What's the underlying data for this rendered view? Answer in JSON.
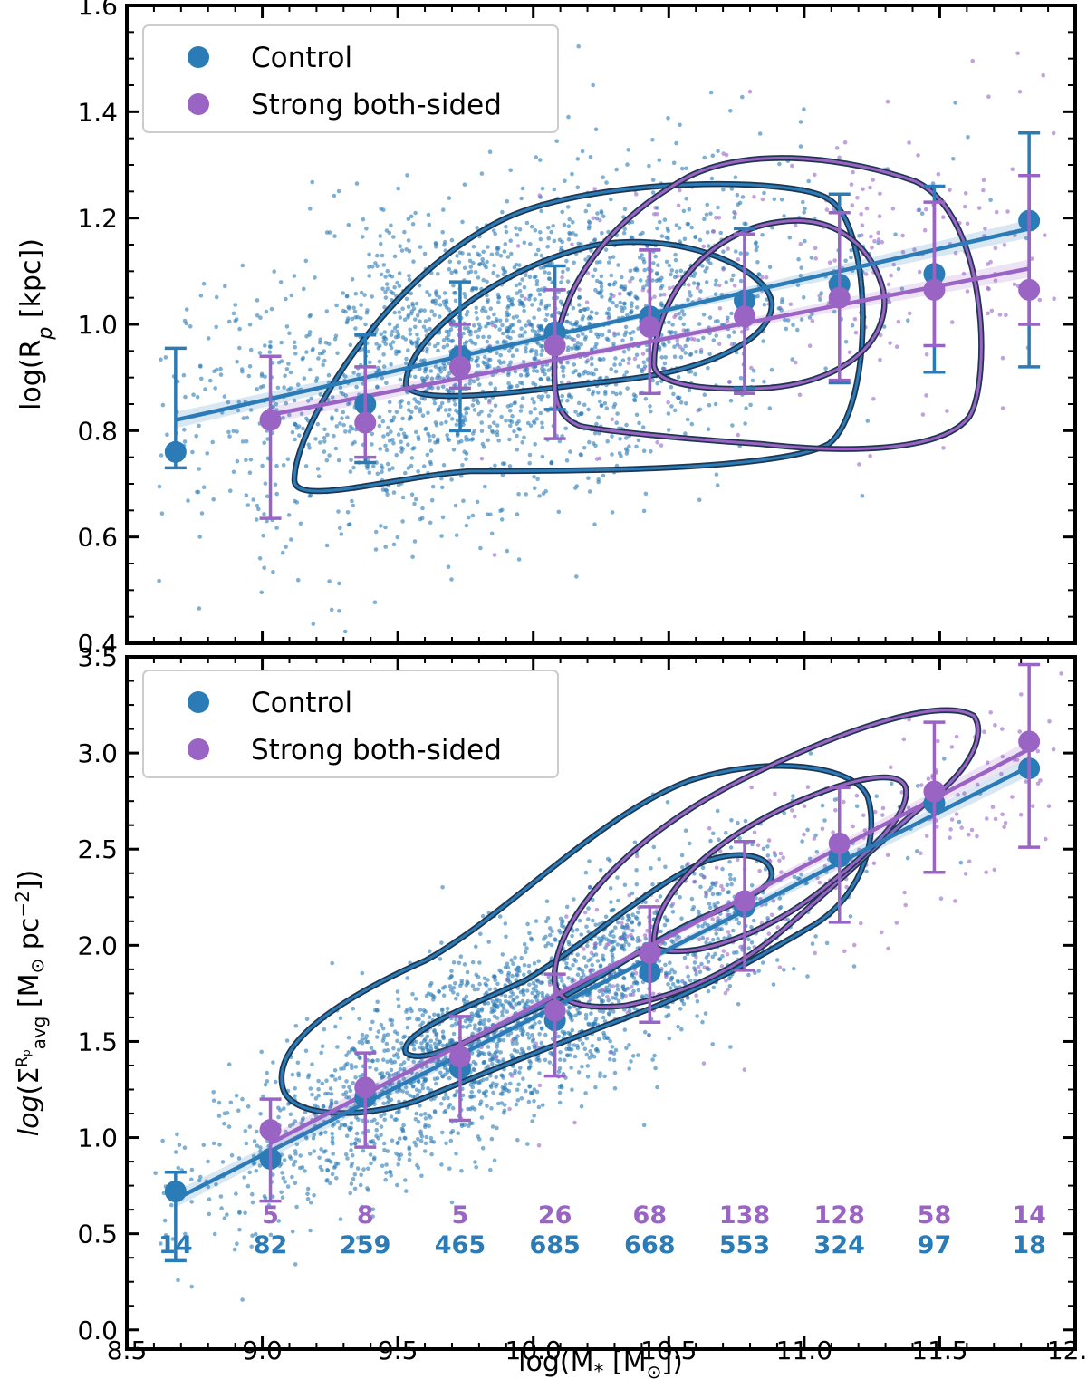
{
  "colors": {
    "control": "#2a7bb6",
    "strong": "#9a64c4",
    "contour_dark": "#1f3550",
    "frame": "#000000"
  },
  "legend": {
    "control_label": "Control",
    "strong_label": "Strong both-sided"
  },
  "xaxis": {
    "label": "log(M* [M⊙])",
    "ticks": [
      "8.5",
      "9.0",
      "9.5",
      "10.0",
      "10.5",
      "11.0",
      "11.5",
      "12.0"
    ],
    "range": [
      8.5,
      12.0
    ]
  },
  "counts": {
    "strong": [
      "5",
      "8",
      "5",
      "26",
      "68",
      "138",
      "128",
      "58",
      "14"
    ],
    "control": [
      "14",
      "82",
      "259",
      "465",
      "685",
      "668",
      "553",
      "324",
      "97",
      "18"
    ]
  },
  "chart_data": [
    {
      "type": "scatter",
      "title": "",
      "xlabel": "log(M* [M⊙])",
      "ylabel": "log(Rp [kpc])",
      "xlim": [
        8.5,
        12.0
      ],
      "ylim": [
        0.4,
        1.6
      ],
      "yticks": [
        "0.4",
        "0.6",
        "0.8",
        "1.0",
        "1.2",
        "1.4",
        "1.6"
      ],
      "legend_position": "top-left",
      "series": [
        {
          "name": "Control",
          "x": [
            8.68,
            9.38,
            9.73,
            10.08,
            10.43,
            10.78,
            11.13,
            11.48,
            11.83
          ],
          "y": [
            0.76,
            0.85,
            0.94,
            0.985,
            1.015,
            1.045,
            1.075,
            1.095,
            1.195
          ],
          "err_low": [
            0.73,
            0.74,
            0.8,
            0.84,
            0.87,
            0.88,
            0.89,
            0.91,
            0.92
          ],
          "err_high": [
            0.955,
            0.98,
            1.08,
            1.11,
            1.14,
            1.18,
            1.245,
            1.26,
            1.36
          ]
        },
        {
          "name": "Strong both-sided",
          "x": [
            9.03,
            9.38,
            9.73,
            10.08,
            10.43,
            10.78,
            11.13,
            11.48,
            11.83
          ],
          "y": [
            0.82,
            0.815,
            0.92,
            0.96,
            0.995,
            1.015,
            1.05,
            1.065,
            1.065
          ],
          "err_low": [
            0.635,
            0.75,
            0.88,
            0.785,
            0.87,
            0.87,
            0.895,
            0.96,
            1.0
          ],
          "err_high": [
            0.94,
            0.92,
            1.0,
            1.065,
            1.14,
            1.17,
            1.21,
            1.23,
            1.28
          ]
        }
      ],
      "fit_lines": [
        {
          "name": "Control",
          "x": [
            8.68,
            11.83
          ],
          "y": [
            0.82,
            1.18
          ]
        },
        {
          "name": "Strong both-sided",
          "x": [
            9.03,
            11.83
          ],
          "y": [
            0.83,
            1.105
          ]
        }
      ]
    },
    {
      "type": "scatter",
      "title": "",
      "xlabel": "log(M* [M⊙])",
      "ylabel": "log(Σ avg Rp [M⊙ pc−2])",
      "xlim": [
        8.5,
        12.0
      ],
      "ylim": [
        -0.1,
        3.5
      ],
      "yticks": [
        "0.0",
        "0.5",
        "1.0",
        "1.5",
        "2.0",
        "2.5",
        "3.0",
        "3.5"
      ],
      "legend_position": "top-left",
      "series": [
        {
          "name": "Control",
          "x": [
            8.68,
            9.03,
            9.38,
            9.73,
            10.08,
            10.43,
            10.78,
            11.13,
            11.48,
            11.83
          ],
          "y": [
            0.72,
            0.89,
            1.21,
            1.36,
            1.61,
            1.86,
            2.2,
            2.46,
            2.74,
            2.92
          ],
          "err_low": [
            0.36,
            null,
            null,
            null,
            null,
            null,
            null,
            null,
            null,
            null
          ],
          "err_high": [
            0.82,
            null,
            null,
            null,
            null,
            null,
            null,
            null,
            null,
            null
          ]
        },
        {
          "name": "Strong both-sided",
          "x": [
            9.03,
            9.38,
            9.73,
            10.08,
            10.43,
            10.78,
            11.13,
            11.48,
            11.83
          ],
          "y": [
            1.04,
            1.26,
            1.42,
            1.66,
            1.96,
            2.23,
            2.53,
            2.8,
            3.06
          ],
          "err_low": [
            0.67,
            0.95,
            1.09,
            1.32,
            1.6,
            1.87,
            2.12,
            2.38,
            2.51
          ],
          "err_high": [
            1.2,
            1.44,
            1.63,
            1.85,
            2.2,
            2.54,
            2.82,
            3.16,
            3.46
          ]
        }
      ],
      "fit_lines": [
        {
          "name": "Control",
          "x": [
            8.68,
            11.83
          ],
          "y": [
            0.68,
            2.93
          ]
        },
        {
          "name": "Strong both-sided",
          "x": [
            9.03,
            11.83
          ],
          "y": [
            0.97,
            3.02
          ]
        }
      ]
    }
  ]
}
